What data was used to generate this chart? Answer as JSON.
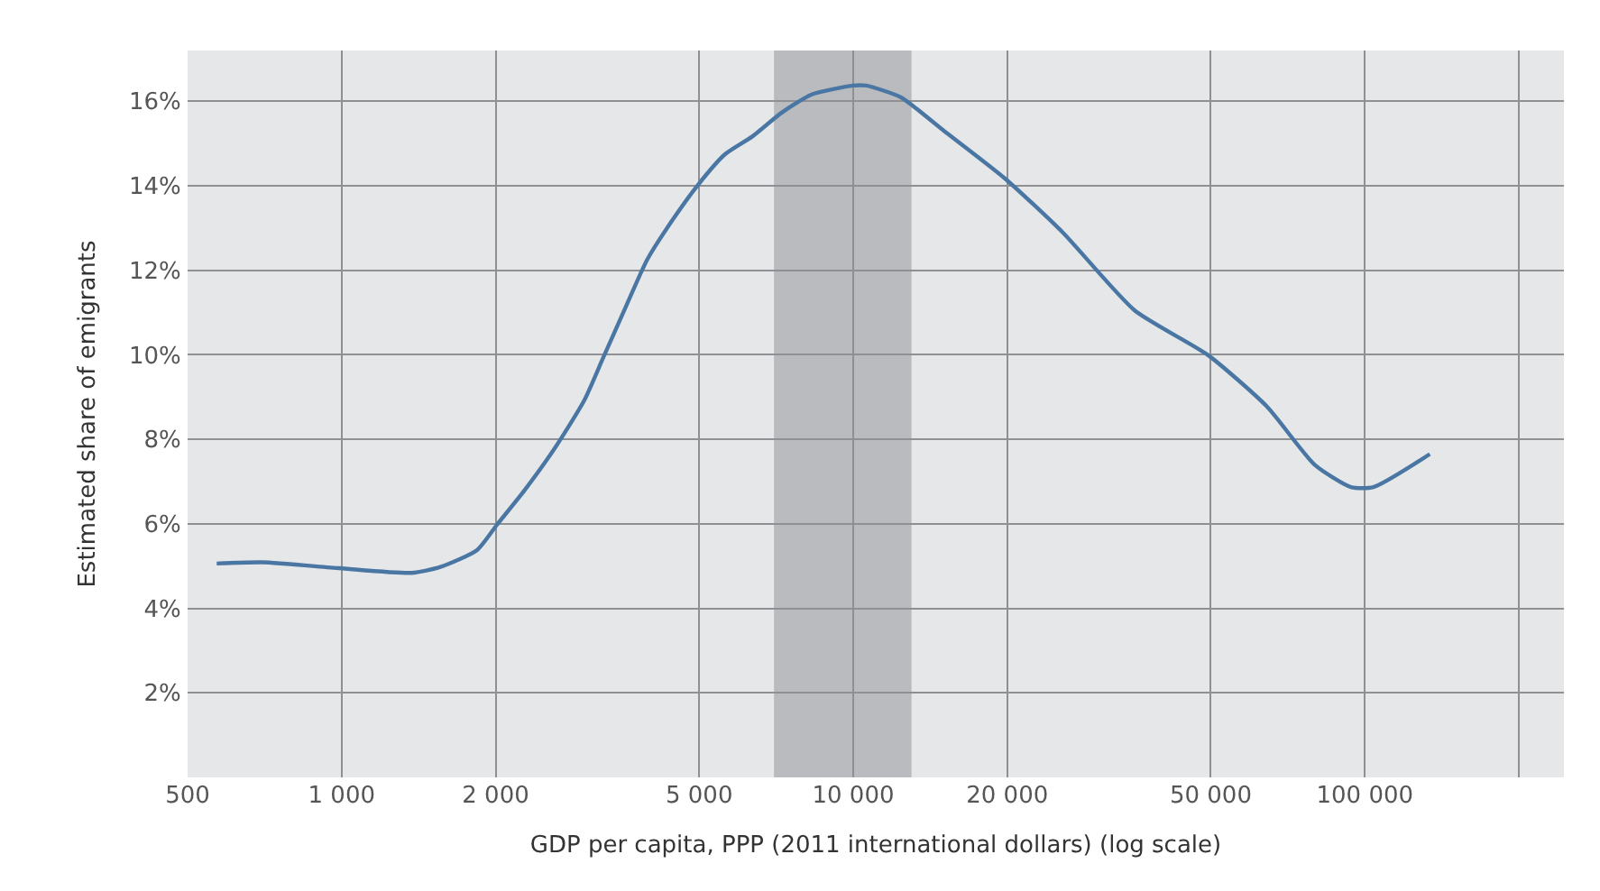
{
  "chart_data": {
    "type": "line",
    "xlabel": "GDP per capita, PPP (2011 international dollars) (log scale)",
    "ylabel": "Estimated share of emigrants",
    "log": "x",
    "grid": true,
    "marker": "none",
    "line_style": "solid",
    "xlim": [
      500,
      245000
    ],
    "ylim": [
      0,
      17.2
    ],
    "xticks": [
      {
        "value": 500,
        "label": "500"
      },
      {
        "value": 1000,
        "label": "1 000"
      },
      {
        "value": 2000,
        "label": "2 000"
      },
      {
        "value": 5000,
        "label": "5 000"
      },
      {
        "value": 10000,
        "label": "10 000"
      },
      {
        "value": 20000,
        "label": "20 000"
      },
      {
        "value": 50000,
        "label": "50 000"
      },
      {
        "value": 100000,
        "label": "100 000"
      },
      {
        "value": 200000,
        "label": null
      }
    ],
    "yticks": [
      {
        "value": 2,
        "label": "2%"
      },
      {
        "value": 4,
        "label": "4%"
      },
      {
        "value": 6,
        "label": "6%"
      },
      {
        "value": 8,
        "label": "8%"
      },
      {
        "value": 10,
        "label": "10%"
      },
      {
        "value": 12,
        "label": "12%"
      },
      {
        "value": 14,
        "label": "14%"
      },
      {
        "value": 16,
        "label": "16%"
      }
    ],
    "bands": [
      {
        "axis": "x",
        "from": 7000,
        "to": 13000,
        "label": null,
        "color": "#b9bbbe"
      }
    ],
    "x": [
      570,
      700,
      990,
      1370,
      1560,
      1840,
      2010,
      2280,
      2610,
      2980,
      3240,
      3610,
      3960,
      4470,
      4980,
      5610,
      6340,
      7250,
      8300,
      10000,
      10600,
      12400,
      15000,
      19800,
      25700,
      35500,
      49400,
      64300,
      79900,
      93900,
      104000,
      134000
    ],
    "series": [
      {
        "color": "#4a76a3",
        "values": [
          5.06,
          5.09,
          4.95,
          4.84,
          4.98,
          5.38,
          5.97,
          6.8,
          7.79,
          8.92,
          9.91,
          11.19,
          12.26,
          13.25,
          14.03,
          14.74,
          15.16,
          15.73,
          16.16,
          16.37,
          16.37,
          16.09,
          15.31,
          14.17,
          12.89,
          11.05,
          9.99,
          8.78,
          7.39,
          6.87,
          6.87,
          7.65
        ]
      }
    ]
  }
}
